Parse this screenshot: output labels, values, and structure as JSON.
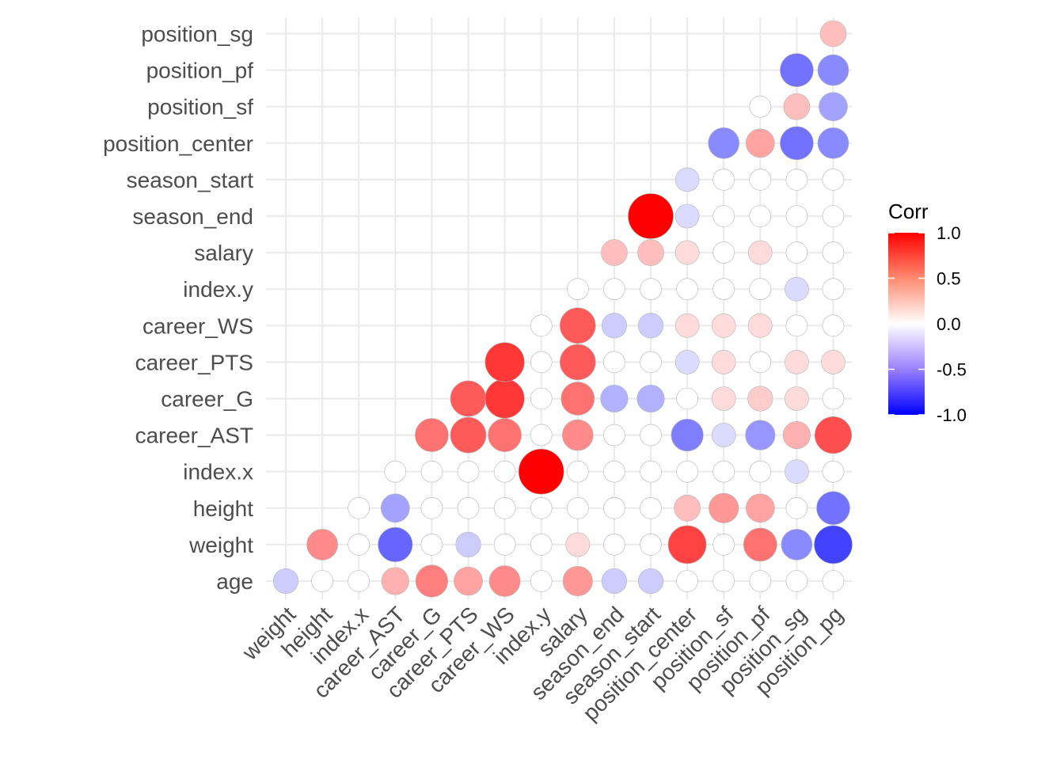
{
  "chart_data": {
    "type": "scatter",
    "plot_style": "correlogram-circles",
    "x_categories": [
      "weight",
      "height",
      "index.x",
      "career_AST",
      "career_G",
      "career_PTS",
      "career_WS",
      "index.y",
      "salary",
      "season_end",
      "season_start",
      "position_center",
      "position_sf",
      "position_pf",
      "position_sg",
      "position_pg"
    ],
    "y_categories": [
      "age",
      "weight",
      "height",
      "index.x",
      "career_AST",
      "career_G",
      "career_PTS",
      "career_WS",
      "index.y",
      "salary",
      "season_end",
      "season_start",
      "position_center",
      "position_sf",
      "position_pf",
      "position_sg"
    ],
    "cells": [
      {
        "x": "weight",
        "y": "age",
        "value": -0.15
      },
      {
        "x": "height",
        "y": "age",
        "value": 0.0
      },
      {
        "x": "index.x",
        "y": "age",
        "value": 0.0
      },
      {
        "x": "career_AST",
        "y": "age",
        "value": 0.25
      },
      {
        "x": "career_G",
        "y": "age",
        "value": 0.45
      },
      {
        "x": "career_PTS",
        "y": "age",
        "value": 0.3
      },
      {
        "x": "career_WS",
        "y": "age",
        "value": 0.4
      },
      {
        "x": "index.y",
        "y": "age",
        "value": 0.0
      },
      {
        "x": "salary",
        "y": "age",
        "value": 0.35
      },
      {
        "x": "season_end",
        "y": "age",
        "value": -0.15
      },
      {
        "x": "season_start",
        "y": "age",
        "value": -0.15
      },
      {
        "x": "position_center",
        "y": "age",
        "value": 0.0
      },
      {
        "x": "position_sf",
        "y": "age",
        "value": 0.0
      },
      {
        "x": "position_pf",
        "y": "age",
        "value": 0.0
      },
      {
        "x": "position_sg",
        "y": "age",
        "value": 0.0
      },
      {
        "x": "position_pg",
        "y": "age",
        "value": 0.0
      },
      {
        "x": "height",
        "y": "weight",
        "value": 0.4
      },
      {
        "x": "index.x",
        "y": "weight",
        "value": 0.0
      },
      {
        "x": "career_AST",
        "y": "weight",
        "value": -0.55
      },
      {
        "x": "career_G",
        "y": "weight",
        "value": 0.0
      },
      {
        "x": "career_PTS",
        "y": "weight",
        "value": -0.15
      },
      {
        "x": "career_WS",
        "y": "weight",
        "value": 0.0
      },
      {
        "x": "index.y",
        "y": "weight",
        "value": 0.0
      },
      {
        "x": "salary",
        "y": "weight",
        "value": 0.1
      },
      {
        "x": "season_end",
        "y": "weight",
        "value": 0.0
      },
      {
        "x": "season_start",
        "y": "weight",
        "value": 0.0
      },
      {
        "x": "position_center",
        "y": "weight",
        "value": 0.7
      },
      {
        "x": "position_sf",
        "y": "weight",
        "value": 0.0
      },
      {
        "x": "position_pf",
        "y": "weight",
        "value": 0.5
      },
      {
        "x": "position_sg",
        "y": "weight",
        "value": -0.4
      },
      {
        "x": "position_pg",
        "y": "weight",
        "value": -0.7
      },
      {
        "x": "index.x",
        "y": "height",
        "value": 0.0
      },
      {
        "x": "career_AST",
        "y": "height",
        "value": -0.3
      },
      {
        "x": "career_G",
        "y": "height",
        "value": 0.0
      },
      {
        "x": "career_PTS",
        "y": "height",
        "value": 0.0
      },
      {
        "x": "career_WS",
        "y": "height",
        "value": 0.0
      },
      {
        "x": "index.y",
        "y": "height",
        "value": 0.0
      },
      {
        "x": "salary",
        "y": "height",
        "value": 0.0
      },
      {
        "x": "season_end",
        "y": "height",
        "value": 0.0
      },
      {
        "x": "season_start",
        "y": "height",
        "value": 0.0
      },
      {
        "x": "position_center",
        "y": "height",
        "value": 0.2
      },
      {
        "x": "position_sf",
        "y": "height",
        "value": 0.35
      },
      {
        "x": "position_pf",
        "y": "height",
        "value": 0.3
      },
      {
        "x": "position_sg",
        "y": "height",
        "value": 0.0
      },
      {
        "x": "position_pg",
        "y": "height",
        "value": -0.5
      },
      {
        "x": "career_AST",
        "y": "index.x",
        "value": 0.0
      },
      {
        "x": "career_G",
        "y": "index.x",
        "value": 0.0
      },
      {
        "x": "career_PTS",
        "y": "index.x",
        "value": 0.0
      },
      {
        "x": "career_WS",
        "y": "index.x",
        "value": 0.0
      },
      {
        "x": "index.y",
        "y": "index.x",
        "value": 1.0
      },
      {
        "x": "salary",
        "y": "index.x",
        "value": 0.0
      },
      {
        "x": "season_end",
        "y": "index.x",
        "value": 0.0
      },
      {
        "x": "season_start",
        "y": "index.x",
        "value": 0.0
      },
      {
        "x": "position_center",
        "y": "index.x",
        "value": 0.0
      },
      {
        "x": "position_sf",
        "y": "index.x",
        "value": 0.0
      },
      {
        "x": "position_pf",
        "y": "index.x",
        "value": 0.0
      },
      {
        "x": "position_sg",
        "y": "index.x",
        "value": -0.1
      },
      {
        "x": "position_pg",
        "y": "index.x",
        "value": 0.0
      },
      {
        "x": "career_G",
        "y": "career_AST",
        "value": 0.5
      },
      {
        "x": "career_PTS",
        "y": "career_AST",
        "value": 0.6
      },
      {
        "x": "career_WS",
        "y": "career_AST",
        "value": 0.5
      },
      {
        "x": "index.y",
        "y": "career_AST",
        "value": 0.0
      },
      {
        "x": "salary",
        "y": "career_AST",
        "value": 0.4
      },
      {
        "x": "season_end",
        "y": "career_AST",
        "value": 0.0
      },
      {
        "x": "season_start",
        "y": "career_AST",
        "value": 0.0
      },
      {
        "x": "position_center",
        "y": "career_AST",
        "value": -0.45
      },
      {
        "x": "position_sf",
        "y": "career_AST",
        "value": -0.1
      },
      {
        "x": "position_pf",
        "y": "career_AST",
        "value": -0.35
      },
      {
        "x": "position_sg",
        "y": "career_AST",
        "value": 0.25
      },
      {
        "x": "position_pg",
        "y": "career_AST",
        "value": 0.65
      },
      {
        "x": "career_PTS",
        "y": "career_G",
        "value": 0.6
      },
      {
        "x": "career_WS",
        "y": "career_G",
        "value": 0.75
      },
      {
        "x": "index.y",
        "y": "career_G",
        "value": 0.0
      },
      {
        "x": "salary",
        "y": "career_G",
        "value": 0.5
      },
      {
        "x": "season_end",
        "y": "career_G",
        "value": -0.25
      },
      {
        "x": "season_start",
        "y": "career_G",
        "value": -0.25
      },
      {
        "x": "position_center",
        "y": "career_G",
        "value": 0.0
      },
      {
        "x": "position_sf",
        "y": "career_G",
        "value": 0.1
      },
      {
        "x": "position_pf",
        "y": "career_G",
        "value": 0.15
      },
      {
        "x": "position_sg",
        "y": "career_G",
        "value": 0.1
      },
      {
        "x": "position_pg",
        "y": "career_G",
        "value": 0.0
      },
      {
        "x": "career_WS",
        "y": "career_PTS",
        "value": 0.75
      },
      {
        "x": "index.y",
        "y": "career_PTS",
        "value": 0.0
      },
      {
        "x": "salary",
        "y": "career_PTS",
        "value": 0.6
      },
      {
        "x": "season_end",
        "y": "career_PTS",
        "value": 0.0
      },
      {
        "x": "season_start",
        "y": "career_PTS",
        "value": 0.0
      },
      {
        "x": "position_center",
        "y": "career_PTS",
        "value": -0.1
      },
      {
        "x": "position_sf",
        "y": "career_PTS",
        "value": 0.1
      },
      {
        "x": "position_pf",
        "y": "career_PTS",
        "value": 0.0
      },
      {
        "x": "position_sg",
        "y": "career_PTS",
        "value": 0.1
      },
      {
        "x": "position_pg",
        "y": "career_PTS",
        "value": 0.1
      },
      {
        "x": "index.y",
        "y": "career_WS",
        "value": 0.0
      },
      {
        "x": "salary",
        "y": "career_WS",
        "value": 0.6
      },
      {
        "x": "season_end",
        "y": "career_WS",
        "value": -0.15
      },
      {
        "x": "season_start",
        "y": "career_WS",
        "value": -0.15
      },
      {
        "x": "position_center",
        "y": "career_WS",
        "value": 0.1
      },
      {
        "x": "position_sf",
        "y": "career_WS",
        "value": 0.1
      },
      {
        "x": "position_pf",
        "y": "career_WS",
        "value": 0.1
      },
      {
        "x": "position_sg",
        "y": "career_WS",
        "value": 0.0
      },
      {
        "x": "position_pg",
        "y": "career_WS",
        "value": 0.0
      },
      {
        "x": "salary",
        "y": "index.y",
        "value": 0.0
      },
      {
        "x": "season_end",
        "y": "index.y",
        "value": 0.0
      },
      {
        "x": "season_start",
        "y": "index.y",
        "value": 0.0
      },
      {
        "x": "position_center",
        "y": "index.y",
        "value": 0.0
      },
      {
        "x": "position_sf",
        "y": "index.y",
        "value": 0.0
      },
      {
        "x": "position_pf",
        "y": "index.y",
        "value": 0.0
      },
      {
        "x": "position_sg",
        "y": "index.y",
        "value": -0.1
      },
      {
        "x": "position_pg",
        "y": "index.y",
        "value": 0.0
      },
      {
        "x": "season_end",
        "y": "salary",
        "value": 0.2
      },
      {
        "x": "season_start",
        "y": "salary",
        "value": 0.2
      },
      {
        "x": "position_center",
        "y": "salary",
        "value": 0.1
      },
      {
        "x": "position_sf",
        "y": "salary",
        "value": 0.0
      },
      {
        "x": "position_pf",
        "y": "salary",
        "value": 0.1
      },
      {
        "x": "position_sg",
        "y": "salary",
        "value": 0.0
      },
      {
        "x": "position_pg",
        "y": "salary",
        "value": 0.0
      },
      {
        "x": "season_start",
        "y": "season_end",
        "value": 1.0
      },
      {
        "x": "position_center",
        "y": "season_end",
        "value": -0.1
      },
      {
        "x": "position_sf",
        "y": "season_end",
        "value": 0.0
      },
      {
        "x": "position_pf",
        "y": "season_end",
        "value": 0.0
      },
      {
        "x": "position_sg",
        "y": "season_end",
        "value": 0.0
      },
      {
        "x": "position_pg",
        "y": "season_end",
        "value": 0.0
      },
      {
        "x": "position_center",
        "y": "season_start",
        "value": -0.1
      },
      {
        "x": "position_sf",
        "y": "season_start",
        "value": 0.0
      },
      {
        "x": "position_pf",
        "y": "season_start",
        "value": 0.0
      },
      {
        "x": "position_sg",
        "y": "season_start",
        "value": 0.0
      },
      {
        "x": "position_pg",
        "y": "season_start",
        "value": 0.0
      },
      {
        "x": "position_sf",
        "y": "position_center",
        "value": -0.4
      },
      {
        "x": "position_pf",
        "y": "position_center",
        "value": 0.3
      },
      {
        "x": "position_sg",
        "y": "position_center",
        "value": -0.5
      },
      {
        "x": "position_pg",
        "y": "position_center",
        "value": -0.4
      },
      {
        "x": "position_pf",
        "y": "position_sf",
        "value": 0.0
      },
      {
        "x": "position_sg",
        "y": "position_sf",
        "value": 0.2
      },
      {
        "x": "position_pg",
        "y": "position_sf",
        "value": -0.3
      },
      {
        "x": "position_sg",
        "y": "position_pf",
        "value": -0.5
      },
      {
        "x": "position_pg",
        "y": "position_pf",
        "value": -0.4
      },
      {
        "x": "position_pg",
        "y": "position_sg",
        "value": 0.2
      }
    ],
    "legend": {
      "title": "Corr",
      "ticks": [
        "1.0",
        "0.5",
        "0.0",
        "-0.5",
        "-1.0"
      ],
      "tick_values": [
        1.0,
        0.5,
        0.0,
        -0.5,
        -1.0
      ],
      "range": [
        -1.0,
        1.0
      ],
      "colors": {
        "low": "#0000ff",
        "mid": "#ffffff",
        "high": "#ff0000"
      },
      "placement": "right"
    },
    "xlabel": "",
    "ylabel": "",
    "grid": true
  }
}
